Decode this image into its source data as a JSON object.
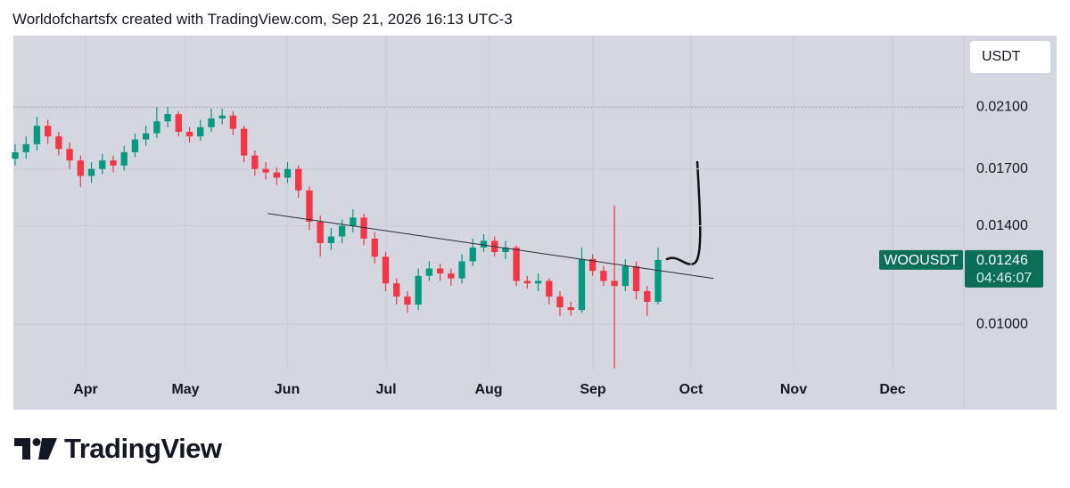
{
  "header": "Worldofchartsfx created with TradingView.com, Sep 21, 2026 16:13 UTC-3",
  "footer": "TradingView",
  "chart_data": {
    "type": "candlestick",
    "currency": "USDT",
    "symbol": "WOOUSDT",
    "countdown": "04:46:07",
    "log_scale": true,
    "grid": true,
    "up_color": "#089981",
    "down_color": "#f23645",
    "xticks": [
      "Apr",
      "May",
      "Jun",
      "Jul",
      "Aug",
      "Sep",
      "Oct",
      "Nov",
      "Dec"
    ],
    "ylim": [
      0.00857,
      0.0268
    ],
    "yticks": [
      {
        "value": 0.01,
        "label": "0.01000"
      },
      {
        "value": 0.014,
        "label": "0.01400"
      },
      {
        "value": 0.017,
        "label": "0.01700"
      },
      {
        "value": 0.021,
        "label": "0.02100"
      }
    ],
    "reference_line": 0.021,
    "trendline": [
      0.0146,
      0.0117
    ],
    "open": [
      0.0176,
      0.018,
      0.0185,
      0.0197,
      0.019,
      0.0182,
      0.0175,
      0.0166,
      0.017,
      0.0175,
      0.0172,
      0.018,
      0.0188,
      0.0192,
      0.02,
      0.0205,
      0.0193,
      0.019,
      0.0196,
      0.0202,
      0.0204,
      0.0195,
      0.0178,
      0.017,
      0.0168,
      0.0165,
      0.017,
      0.0158,
      0.0142,
      0.0132,
      0.0135,
      0.014,
      0.0144,
      0.0134,
      0.0126,
      0.0115,
      0.011,
      0.0107,
      0.0118,
      0.0121,
      0.0119,
      0.0117,
      0.0124,
      0.013,
      0.0133,
      0.0128,
      0.013,
      0.0116,
      0.0115,
      0.0116,
      0.011,
      0.0106,
      0.0105,
      0.0125,
      0.012,
      0.0116,
      0.0114,
      0.0122,
      0.0112,
      0.0108
    ],
    "high": [
      0.0185,
      0.019,
      0.0203,
      0.0201,
      0.0193,
      0.0186,
      0.0178,
      0.0174,
      0.0179,
      0.0178,
      0.0184,
      0.0192,
      0.0197,
      0.021,
      0.021,
      0.0207,
      0.0196,
      0.0201,
      0.0209,
      0.0209,
      0.0207,
      0.0197,
      0.0181,
      0.0174,
      0.0171,
      0.0174,
      0.0172,
      0.016,
      0.0145,
      0.0139,
      0.0143,
      0.0148,
      0.0146,
      0.0137,
      0.0128,
      0.0117,
      0.0112,
      0.0121,
      0.0124,
      0.0123,
      0.0121,
      0.0127,
      0.0134,
      0.0136,
      0.0135,
      0.0133,
      0.0131,
      0.0118,
      0.0119,
      0.0117,
      0.0112,
      0.0108,
      0.013,
      0.0127,
      0.0122,
      0.015,
      0.0125,
      0.0124,
      0.0114,
      0.013
    ],
    "low": [
      0.0172,
      0.0176,
      0.0181,
      0.0185,
      0.0178,
      0.017,
      0.016,
      0.0162,
      0.0167,
      0.0168,
      0.0169,
      0.0177,
      0.0184,
      0.0189,
      0.0196,
      0.019,
      0.0186,
      0.0187,
      0.0193,
      0.0198,
      0.0191,
      0.0174,
      0.0166,
      0.0164,
      0.0161,
      0.0162,
      0.0154,
      0.0138,
      0.0126,
      0.0129,
      0.0132,
      0.0137,
      0.0131,
      0.0123,
      0.0112,
      0.0107,
      0.0104,
      0.0105,
      0.0116,
      0.0116,
      0.0114,
      0.0115,
      0.0122,
      0.0128,
      0.0126,
      0.0125,
      0.0114,
      0.0113,
      0.0112,
      0.0107,
      0.0103,
      0.0103,
      0.0104,
      0.0118,
      0.0114,
      0.0086,
      0.0112,
      0.0109,
      0.0103,
      0.0107
    ],
    "close": [
      0.018,
      0.0185,
      0.0197,
      0.019,
      0.0182,
      0.0175,
      0.0166,
      0.017,
      0.0175,
      0.0172,
      0.018,
      0.0188,
      0.0192,
      0.02,
      0.0205,
      0.0193,
      0.019,
      0.0196,
      0.0202,
      0.0204,
      0.0195,
      0.0178,
      0.017,
      0.0168,
      0.0165,
      0.017,
      0.0158,
      0.0142,
      0.0132,
      0.0135,
      0.014,
      0.0144,
      0.0134,
      0.0126,
      0.0115,
      0.011,
      0.0107,
      0.0118,
      0.0121,
      0.0119,
      0.0117,
      0.0124,
      0.013,
      0.0133,
      0.0128,
      0.013,
      0.0116,
      0.0115,
      0.0116,
      0.011,
      0.0106,
      0.0105,
      0.0125,
      0.012,
      0.0116,
      0.0114,
      0.0122,
      0.0112,
      0.0108,
      0.01246
    ]
  }
}
